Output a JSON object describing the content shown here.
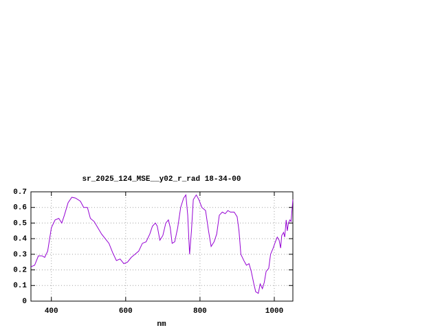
{
  "chart_data": {
    "type": "line",
    "title": "sr_2025_124_MSE__y02_r_rad 18-34-00",
    "xlabel": "nm",
    "x": [
      345,
      355,
      365,
      375,
      382,
      390,
      400,
      410,
      420,
      428,
      435,
      445,
      455,
      465,
      478,
      487,
      497,
      505,
      515,
      525,
      535,
      545,
      555,
      565,
      575,
      585,
      595,
      605,
      615,
      625,
      635,
      645,
      655,
      665,
      672,
      680,
      685,
      692,
      700,
      708,
      715,
      720,
      725,
      732,
      740,
      748,
      756,
      762,
      767,
      772,
      777,
      782,
      790,
      797,
      805,
      815,
      823,
      830,
      838,
      845,
      852,
      860,
      868,
      875,
      882,
      892,
      900,
      905,
      910,
      918,
      925,
      932,
      938,
      945,
      950,
      957,
      962,
      968,
      973,
      978,
      985,
      990,
      997,
      1003,
      1008,
      1013,
      1017,
      1020,
      1025,
      1028,
      1032,
      1035,
      1038,
      1042,
      1045,
      1050
    ],
    "series": [
      {
        "color": "#9400d3",
        "values": [
          0.22,
          0.23,
          0.29,
          0.29,
          0.28,
          0.32,
          0.47,
          0.52,
          0.53,
          0.5,
          0.55,
          0.63,
          0.665,
          0.66,
          0.64,
          0.6,
          0.6,
          0.53,
          0.51,
          0.47,
          0.43,
          0.4,
          0.37,
          0.31,
          0.26,
          0.27,
          0.24,
          0.25,
          0.28,
          0.3,
          0.32,
          0.37,
          0.38,
          0.43,
          0.48,
          0.5,
          0.48,
          0.39,
          0.42,
          0.5,
          0.52,
          0.47,
          0.37,
          0.38,
          0.47,
          0.6,
          0.66,
          0.68,
          0.55,
          0.3,
          0.45,
          0.65,
          0.68,
          0.65,
          0.6,
          0.58,
          0.45,
          0.35,
          0.38,
          0.43,
          0.55,
          0.57,
          0.56,
          0.58,
          0.57,
          0.57,
          0.54,
          0.45,
          0.3,
          0.26,
          0.23,
          0.24,
          0.19,
          0.11,
          0.06,
          0.05,
          0.11,
          0.08,
          0.12,
          0.19,
          0.21,
          0.3,
          0.34,
          0.38,
          0.41,
          0.39,
          0.34,
          0.42,
          0.44,
          0.41,
          0.52,
          0.45,
          0.5,
          0.52,
          0.51,
          0.65
        ]
      }
    ],
    "xlim": [
      345,
      1050
    ],
    "xticks": [
      400,
      600,
      800,
      1000
    ],
    "ylim": [
      0,
      0.7
    ],
    "yticks": [
      0,
      0.1,
      0.2,
      0.3,
      0.4,
      0.5,
      0.6,
      0.7
    ],
    "grid": true
  }
}
